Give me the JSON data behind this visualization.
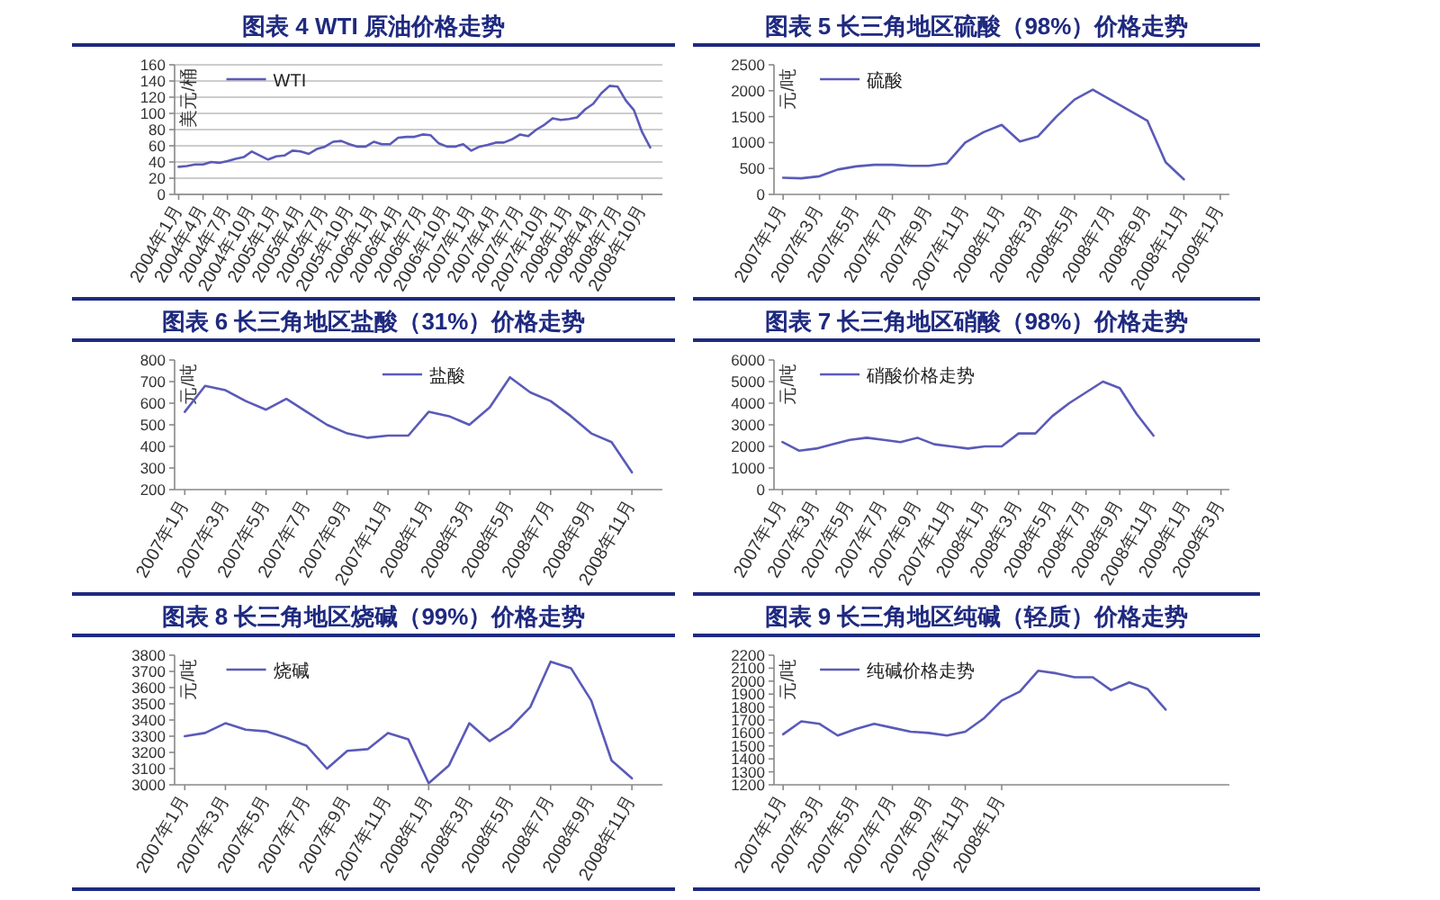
{
  "chart_data": [
    {
      "type": "line",
      "title": "图表 4 WTI 原油价格走势",
      "ylabel": "美元/桶",
      "grid": "y",
      "legend": "top left",
      "ylim": [
        0,
        160
      ],
      "yticks": [
        0,
        20,
        40,
        60,
        80,
        100,
        120,
        140,
        160
      ],
      "categories": [
        "2004年1月",
        null,
        null,
        "2004年4月",
        null,
        null,
        "2004年7月",
        null,
        null,
        "2004年10月",
        null,
        null,
        "2005年1月",
        null,
        null,
        "2005年4月",
        null,
        null,
        "2005年7月",
        null,
        null,
        "2005年10月",
        null,
        null,
        "2006年1月",
        null,
        null,
        "2006年4月",
        null,
        null,
        "2006年7月",
        null,
        null,
        "2006年10月",
        null,
        null,
        "2007年1月",
        null,
        null,
        "2007年4月",
        null,
        null,
        "2007年7月",
        null,
        null,
        "2007年10月",
        null,
        null,
        "2008年1月",
        null,
        null,
        "2008年4月",
        null,
        null,
        "2008年7月",
        null,
        null,
        "2008年10月",
        null,
        null
      ],
      "series": [
        {
          "name": "WTI",
          "color": "#5a5ab8",
          "values": [
            34,
            35,
            37,
            37,
            40,
            39,
            41,
            44,
            46,
            53,
            48,
            43,
            47,
            48,
            54,
            53,
            50,
            56,
            59,
            65,
            66,
            62,
            59,
            59,
            65,
            62,
            62,
            70,
            71,
            71,
            74,
            73,
            63,
            59,
            59,
            62,
            54,
            59,
            61,
            64,
            64,
            68,
            74,
            72,
            80,
            86,
            94,
            92,
            93,
            95,
            105,
            112,
            125,
            134,
            133,
            116,
            104,
            77,
            58,
            null
          ]
        }
      ]
    },
    {
      "type": "line",
      "title": "图表 5 长三角地区硫酸（98%）价格走势",
      "ylabel": "元/吨",
      "legend": "top left",
      "ylim": [
        0,
        2500
      ],
      "yticks": [
        0,
        500,
        1000,
        1500,
        2000,
        2500
      ],
      "categories": [
        "2007年1月",
        null,
        "2007年3月",
        null,
        "2007年5月",
        null,
        "2007年7月",
        null,
        "2007年9月",
        null,
        "2007年11月",
        null,
        "2008年1月",
        null,
        "2008年3月",
        null,
        "2008年5月",
        null,
        "2008年7月",
        null,
        "2008年9月",
        null,
        "2008年11月",
        null,
        "2009年1月"
      ],
      "series": [
        {
          "name": "硫酸",
          "color": "#5a5ab8",
          "values": [
            320,
            310,
            350,
            480,
            540,
            570,
            570,
            550,
            550,
            600,
            1000,
            1200,
            1340,
            1020,
            1120,
            1500,
            1830,
            2020,
            1820,
            1620,
            1420,
            620,
            290,
            null,
            null
          ]
        }
      ]
    },
    {
      "type": "line",
      "title": "图表 6 长三角地区盐酸（31%）价格走势",
      "ylabel": "元/吨",
      "legend": "top",
      "ylim": [
        200,
        800
      ],
      "yticks": [
        200,
        300,
        400,
        500,
        600,
        700,
        800
      ],
      "categories": [
        "2007年1月",
        null,
        "2007年3月",
        null,
        "2007年5月",
        null,
        "2007年7月",
        null,
        "2007年9月",
        null,
        "2007年11月",
        null,
        "2008年1月",
        null,
        "2008年3月",
        null,
        "2008年5月",
        null,
        "2008年7月",
        null,
        "2008年9月",
        null,
        "2008年11月",
        null
      ],
      "series": [
        {
          "name": "盐酸",
          "color": "#5a5ab8",
          "values": [
            560,
            680,
            660,
            610,
            570,
            620,
            560,
            500,
            460,
            440,
            450,
            450,
            560,
            540,
            500,
            580,
            720,
            650,
            610,
            540,
            460,
            420,
            280,
            null
          ]
        }
      ]
    },
    {
      "type": "line",
      "title": "图表 7 长三角地区硝酸（98%）价格走势",
      "ylabel": "元/吨",
      "legend": "top left",
      "ylim": [
        0,
        6000
      ],
      "yticks": [
        0,
        1000,
        2000,
        3000,
        4000,
        5000,
        6000
      ],
      "categories": [
        "2007年1月",
        null,
        "2007年3月",
        null,
        "2007年5月",
        null,
        "2007年7月",
        null,
        "2007年9月",
        null,
        "2007年11月",
        null,
        "2008年1月",
        null,
        "2008年3月",
        null,
        "2008年5月",
        null,
        "2008年7月",
        null,
        "2008年9月",
        null,
        "2008年11月",
        null,
        "2009年1月",
        null,
        "2009年3月"
      ],
      "series": [
        {
          "name": "硝酸价格走势",
          "color": "#5a5ab8",
          "values": [
            2200,
            1800,
            1900,
            2100,
            2300,
            2400,
            2300,
            2200,
            2400,
            2100,
            2000,
            1900,
            2000,
            2000,
            2600,
            2600,
            3400,
            4000,
            4500,
            5000,
            4700,
            3500,
            2500,
            null,
            null,
            null,
            null
          ]
        }
      ]
    },
    {
      "type": "line",
      "title": "图表 8 长三角地区烧碱（99%）价格走势",
      "ylabel": "元/吨",
      "legend": "top left",
      "ylim": [
        3000,
        3800
      ],
      "yticks": [
        3000,
        3100,
        3200,
        3300,
        3400,
        3500,
        3600,
        3700,
        3800
      ],
      "categories": [
        "2007年1月",
        null,
        "2007年3月",
        null,
        "2007年5月",
        null,
        "2007年7月",
        null,
        "2007年9月",
        null,
        "2007年11月",
        null,
        "2008年1月",
        null,
        "2008年3月",
        null,
        "2008年5月",
        null,
        "2008年7月",
        null,
        "2008年9月",
        null,
        "2008年11月",
        null
      ],
      "series": [
        {
          "name": "烧碱",
          "color": "#5a5ab8",
          "values": [
            3300,
            3320,
            3380,
            3340,
            3330,
            3290,
            3240,
            3100,
            3210,
            3220,
            3320,
            3280,
            3010,
            3120,
            3380,
            3270,
            3350,
            3480,
            3760,
            3720,
            3520,
            3150,
            3040,
            null
          ]
        }
      ]
    },
    {
      "type": "line",
      "title": "图表 9 长三角地区纯碱（轻质）价格走势",
      "ylabel": "元/吨",
      "legend": "top left",
      "ylim": [
        1200,
        2200
      ],
      "yticks": [
        1200,
        1300,
        1400,
        1500,
        1600,
        1700,
        1800,
        1900,
        2000,
        2100,
        2200
      ],
      "categories": [
        "2007年1月",
        null,
        "2007年3月",
        null,
        "2007年5月",
        null,
        "2007年7月",
        null,
        "2007年9月",
        null,
        "2007年11月",
        null,
        "2008年1月",
        null,
        null,
        null,
        null,
        null,
        null,
        null,
        null,
        null,
        null,
        null,
        null
      ],
      "series": [
        {
          "name": "纯碱价格走势",
          "color": "#5a5ab8",
          "values": [
            1590,
            1690,
            1670,
            1580,
            1630,
            1670,
            1640,
            1610,
            1600,
            1580,
            1610,
            1710,
            1850,
            1920,
            2080,
            2060,
            2030,
            2030,
            1930,
            1990,
            1940,
            1780,
            null,
            null,
            null
          ]
        }
      ]
    }
  ]
}
